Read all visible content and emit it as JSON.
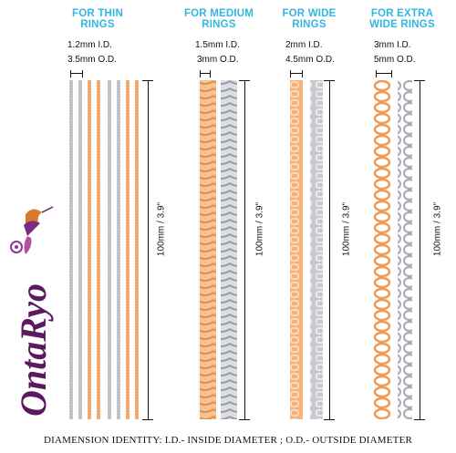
{
  "groups": [
    {
      "title_line1": "FOR THIN",
      "title_line2": "RINGS",
      "id": "1.2mm I.D.",
      "od": "3.5mm O.D.",
      "length": "100mm / 3.9\""
    },
    {
      "title_line1": "FOR MEDIUM",
      "title_line2": "RINGS",
      "id": "1.5mm I.D.",
      "od": "3mm O.D.",
      "length": "100mm / 3.9\""
    },
    {
      "title_line1": "FOR WIDE",
      "title_line2": "RINGS",
      "id": "2mm I.D.",
      "od": "4.5mm O.D.",
      "length": "100mm / 3.9\""
    },
    {
      "title_line1": "FOR EXTRA",
      "title_line2": "WIDE RINGS",
      "id": "3mm I.D.",
      "od": "5mm O.D.",
      "length": "100mm / 3.9\""
    }
  ],
  "brand": {
    "logo_text": "OntaRyo"
  },
  "footer": "DIAMENSION IDENTITY: I.D.- INSIDE DIAMETER ; O.D.- OUTSIDE DIAMETER",
  "colors": {
    "heading": "#33b7e2",
    "gold": "#f2a463",
    "silver": "#b9bcc4",
    "logo": "#5b1a5f"
  }
}
